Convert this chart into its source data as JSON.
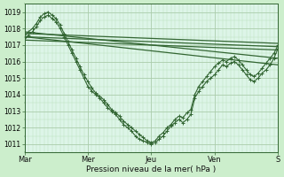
{
  "xlabel": "Pression niveau de la mer( hPa )",
  "bg_color": "#cceecc",
  "plot_bg_color": "#ddf5e8",
  "grid_major_color": "#aaccaa",
  "grid_minor_color": "#bbddbb",
  "line_color": "#336633",
  "ylim": [
    1010.5,
    1019.5
  ],
  "yticks": [
    1011,
    1012,
    1013,
    1014,
    1015,
    1016,
    1017,
    1018,
    1019
  ],
  "day_labels": [
    "Mar",
    "Mer",
    "Jeu",
    "Ven",
    "S"
  ],
  "day_positions": [
    0,
    48,
    96,
    144,
    192
  ],
  "total_hours": 192,
  "smooth_lines": [
    [
      [
        0,
        1017.3
      ],
      [
        192,
        1016.7
      ]
    ],
    [
      [
        0,
        1017.5
      ],
      [
        192,
        1016.9
      ]
    ],
    [
      [
        0,
        1017.7
      ],
      [
        192,
        1017.1
      ]
    ],
    [
      [
        0,
        1017.5
      ],
      [
        192,
        1015.8
      ]
    ],
    [
      [
        0,
        1017.8
      ],
      [
        192,
        1016.2
      ]
    ]
  ],
  "detail_line": [
    0,
    1017.3,
    3,
    1017.6,
    6,
    1017.8,
    9,
    1018.1,
    12,
    1018.5,
    15,
    1018.7,
    18,
    1018.8,
    21,
    1018.6,
    24,
    1018.4,
    27,
    1018.0,
    30,
    1017.5,
    33,
    1017.0,
    36,
    1016.5,
    39,
    1016.0,
    42,
    1015.5,
    45,
    1015.0,
    48,
    1014.5,
    51,
    1014.2,
    54,
    1014.0,
    57,
    1013.8,
    60,
    1013.5,
    63,
    1013.2,
    66,
    1013.0,
    69,
    1012.8,
    72,
    1012.5,
    75,
    1012.2,
    78,
    1012.0,
    81,
    1011.8,
    84,
    1011.5,
    87,
    1011.3,
    90,
    1011.2,
    93,
    1011.1,
    96,
    1011.0,
    99,
    1011.1,
    102,
    1011.3,
    105,
    1011.5,
    108,
    1011.8,
    111,
    1012.1,
    114,
    1012.3,
    117,
    1012.5,
    120,
    1012.3,
    123,
    1012.5,
    126,
    1012.8,
    129,
    1013.8,
    132,
    1014.2,
    135,
    1014.5,
    138,
    1014.8,
    141,
    1015.0,
    144,
    1015.2,
    147,
    1015.5,
    150,
    1015.8,
    153,
    1015.7,
    156,
    1015.9,
    159,
    1016.0,
    162,
    1015.8,
    165,
    1015.5,
    168,
    1015.2,
    171,
    1014.9,
    174,
    1014.8,
    177,
    1015.0,
    180,
    1015.3,
    183,
    1015.5,
    186,
    1015.8,
    189,
    1016.2,
    192,
    1016.8
  ],
  "detail_line2": [
    0,
    1017.5,
    3,
    1017.8,
    6,
    1018.0,
    9,
    1018.3,
    12,
    1018.7,
    15,
    1018.9,
    18,
    1019.0,
    21,
    1018.8,
    24,
    1018.6,
    27,
    1018.2,
    30,
    1017.7,
    33,
    1017.2,
    36,
    1016.7,
    39,
    1016.2,
    42,
    1015.7,
    45,
    1015.2,
    48,
    1014.8,
    51,
    1014.4,
    54,
    1014.1,
    57,
    1013.9,
    60,
    1013.7,
    63,
    1013.4,
    66,
    1013.1,
    69,
    1012.9,
    72,
    1012.7,
    75,
    1012.4,
    78,
    1012.2,
    81,
    1012.0,
    84,
    1011.8,
    87,
    1011.6,
    90,
    1011.4,
    93,
    1011.2,
    96,
    1011.1,
    99,
    1011.2,
    102,
    1011.5,
    105,
    1011.7,
    108,
    1012.0,
    111,
    1012.2,
    114,
    1012.5,
    117,
    1012.7,
    120,
    1012.6,
    123,
    1012.9,
    126,
    1013.1,
    129,
    1014.0,
    132,
    1014.5,
    135,
    1014.8,
    138,
    1015.1,
    141,
    1015.4,
    144,
    1015.7,
    147,
    1015.9,
    150,
    1016.1,
    153,
    1016.0,
    156,
    1016.2,
    159,
    1016.3,
    162,
    1016.1,
    165,
    1015.8,
    168,
    1015.5,
    171,
    1015.2,
    174,
    1015.1,
    177,
    1015.3,
    180,
    1015.6,
    183,
    1015.9,
    186,
    1016.2,
    189,
    1016.5,
    192,
    1017.0
  ]
}
